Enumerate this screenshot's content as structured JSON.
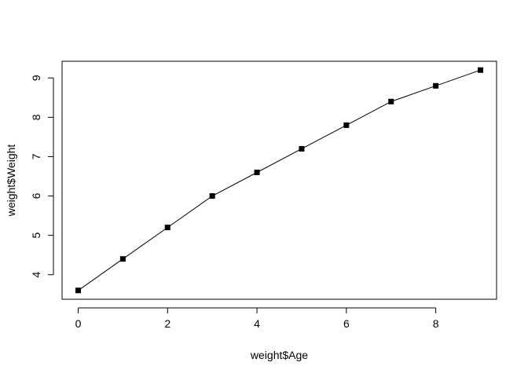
{
  "chart_data": {
    "type": "line",
    "title": "",
    "xlabel": "weight$Age",
    "ylabel": "weight$Weight",
    "x": [
      0,
      1,
      2,
      3,
      4,
      5,
      6,
      7,
      8,
      9
    ],
    "series": [
      {
        "values": [
          3.6,
          4.4,
          5.2,
          6.0,
          6.6,
          7.2,
          7.8,
          8.4,
          8.8,
          9.2
        ],
        "marker": "square",
        "color": "#000000"
      }
    ],
    "xlim": [
      -0.36,
      9.36
    ],
    "ylim": [
      3.376,
      9.424
    ],
    "xticks": [
      0,
      2,
      4,
      6,
      8
    ],
    "yticks": [
      4,
      5,
      6,
      7,
      8,
      9
    ],
    "xtick_labels": [
      "0",
      "2",
      "4",
      "6",
      "8"
    ],
    "ytick_labels": [
      "4",
      "5",
      "6",
      "7",
      "8",
      "9"
    ],
    "grid": false,
    "legend": "none"
  }
}
